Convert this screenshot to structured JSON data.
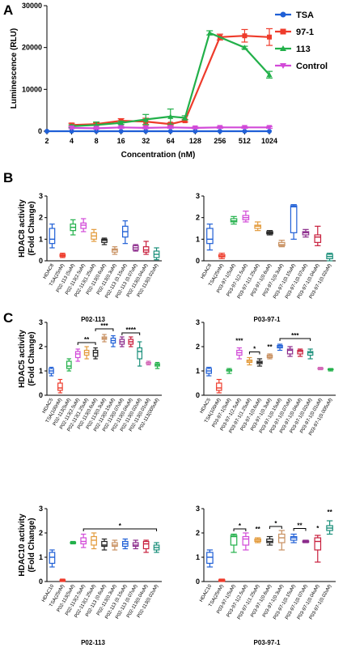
{
  "panels": {
    "a": "A",
    "b": "B",
    "c": "C"
  },
  "captions": {
    "b_left": "P02-113",
    "b_right": "P03-97-1",
    "c_left": "P02-113",
    "c_right": "P03-97-1"
  },
  "chart_data": [
    {
      "id": "A",
      "type": "line",
      "xlabel": "Concentration (nM)",
      "ylabel": "Luminescence (RLU)",
      "xscale": "log2",
      "x": [
        4,
        8,
        16,
        32,
        64,
        128,
        256,
        512,
        1024
      ],
      "xlim": [
        2,
        1024
      ],
      "xticks": [
        2,
        4,
        8,
        16,
        32,
        64,
        128,
        256,
        512,
        1024
      ],
      "ylim": [
        0,
        30000
      ],
      "yticks": [
        0,
        10000,
        20000,
        30000
      ],
      "legend_position": "right",
      "series": [
        {
          "name": "TSA",
          "color": "#1f5fd6",
          "marker": "circle",
          "x": [
            2,
            4,
            8,
            16,
            32,
            64,
            128,
            256,
            512,
            1024
          ],
          "values": [
            0,
            0,
            0,
            0,
            0,
            0,
            0,
            0,
            0,
            0
          ],
          "err": [
            0,
            0,
            0,
            0,
            0,
            0,
            0,
            0,
            0,
            0
          ]
        },
        {
          "name": "97-1",
          "color": "#ee3b2b",
          "marker": "square",
          "x": [
            4,
            8,
            16,
            32,
            64,
            96,
            256,
            512,
            1024
          ],
          "values": [
            1500,
            1700,
            2500,
            2300,
            1700,
            2500,
            22500,
            22800,
            22500
          ],
          "err": [
            400,
            300,
            500,
            800,
            300,
            300,
            700,
            1500,
            2000
          ]
        },
        {
          "name": "113",
          "color": "#22b04a",
          "marker": "triangle",
          "x": [
            4,
            8,
            16,
            32,
            64,
            96,
            192,
            512,
            1024
          ],
          "values": [
            1200,
            1500,
            2000,
            2800,
            3500,
            3200,
            23500,
            20000,
            13500
          ],
          "err": [
            300,
            700,
            400,
            1200,
            1800,
            500,
            500,
            300,
            800
          ]
        },
        {
          "name": "Control",
          "color": "#d24ad8",
          "marker": "triangle-down",
          "x": [
            4,
            8,
            16,
            32,
            64,
            128,
            256,
            512,
            1024
          ],
          "values": [
            800,
            700,
            900,
            800,
            900,
            800,
            900,
            900,
            900
          ],
          "err": [
            200,
            200,
            200,
            200,
            200,
            200,
            200,
            200,
            200
          ]
        }
      ]
    },
    {
      "id": "B-left",
      "type": "box",
      "ylabel": "HDAC8 activity\n(Fold Change)",
      "ylim": [
        0,
        3
      ],
      "yticks": [
        0,
        1,
        2,
        3
      ],
      "categories": [
        "HDAC8",
        "TSA(25nM)",
        "P02-113 (5uM)",
        "P02-113(2.5uM)",
        "P02-113(1.25uM)",
        "P02-113(0.6uM)",
        "P02-113(0.3uM)",
        "P02-113 (0.15uM)",
        "P02-113 (0.07uM)",
        "P02-113(0.04uM)",
        "P02-113(0.02uM)"
      ],
      "colors": [
        "#1f5fd6",
        "#ee3b2b",
        "#22b04a",
        "#d24ad8",
        "#e39b3c",
        "#222222",
        "#c89060",
        "#1f5fd6",
        "#8b2a8b",
        "#c81e3c",
        "#1a8f7a"
      ],
      "low": [
        0.6,
        0.15,
        1.2,
        1.35,
        0.9,
        0.75,
        0.3,
        0.8,
        0.45,
        0.3,
        0.05
      ],
      "q1": [
        0.8,
        0.2,
        1.4,
        1.5,
        1.0,
        0.85,
        0.4,
        1.1,
        0.5,
        0.4,
        0.15
      ],
      "median": [
        1.0,
        0.25,
        1.55,
        1.65,
        1.15,
        0.95,
        0.5,
        1.35,
        0.6,
        0.5,
        0.3
      ],
      "q3": [
        1.5,
        0.3,
        1.7,
        1.75,
        1.3,
        1.0,
        0.55,
        1.6,
        0.7,
        0.65,
        0.45
      ],
      "high": [
        1.7,
        0.35,
        1.9,
        1.95,
        1.45,
        1.05,
        0.65,
        1.85,
        0.75,
        0.9,
        0.6
      ]
    },
    {
      "id": "B-right",
      "type": "box",
      "ylim": [
        0,
        3
      ],
      "yticks": [
        0,
        1,
        2,
        3
      ],
      "categories": [
        "HDAC8",
        "TSA(25nM)",
        "P03-97-1(5uM)",
        "P03-97-1(2.5uM)",
        "P03-97-1(1.25uM)",
        "P03-97-1(0.6uM)",
        "P03-97-1(0.3uM)",
        "P03-97-1(0.15uM)",
        "P03-97-1(0.07uM)",
        "P03-97-1(0.04uM)",
        "P03-97-1(0.02uM)"
      ],
      "colors": [
        "#1f5fd6",
        "#ee3b2b",
        "#22b04a",
        "#d24ad8",
        "#e39b3c",
        "#222222",
        "#c89060",
        "#1f5fd6",
        "#8b2a8b",
        "#c81e3c",
        "#1a8f7a"
      ],
      "low": [
        0.5,
        0.1,
        1.7,
        1.8,
        1.4,
        1.2,
        0.65,
        1.0,
        1.1,
        0.7,
        0.0
      ],
      "q1": [
        0.8,
        0.18,
        1.8,
        1.9,
        1.5,
        1.25,
        0.7,
        1.3,
        1.2,
        0.85,
        0.1
      ],
      "median": [
        1.0,
        0.22,
        1.85,
        2.0,
        1.6,
        1.3,
        0.75,
        2.5,
        1.3,
        1.1,
        0.2
      ],
      "q3": [
        1.5,
        0.28,
        1.95,
        2.1,
        1.65,
        1.35,
        0.85,
        2.55,
        1.35,
        1.2,
        0.3
      ],
      "high": [
        1.7,
        0.35,
        2.05,
        2.3,
        1.8,
        1.4,
        0.95,
        2.6,
        1.45,
        1.6,
        0.35
      ]
    },
    {
      "id": "C-top-left",
      "type": "box",
      "ylabel": "HDAC5 activity\n(Fold Change)",
      "ylim": [
        0,
        3
      ],
      "yticks": [
        0,
        1,
        2,
        3
      ],
      "categories": [
        "HDAC5",
        "TSA(100nM)",
        "P02-113(5uM)",
        "P02-113(2.5uM)",
        "P02-113(1.25uM)",
        "P02-113(0.6uM)",
        "P02-113(0.3uM)",
        "P02-113(0.15uM)",
        "P02-113(0.07uM)",
        "P02-113(0.04uM)",
        "P02-113(0.02uM)",
        "P02-113(0.01uM)",
        "P02-113(005uM)"
      ],
      "colors": [
        "#1f5fd6",
        "#ee3b2b",
        "#22b04a",
        "#d24ad8",
        "#e39b3c",
        "#222222",
        "#c89060",
        "#1f5fd6",
        "#8b2a8b",
        "#c81e3c",
        "#1a8f7a",
        "#d46ab8",
        "#22b04a"
      ],
      "low": [
        0.8,
        0.1,
        1.0,
        1.4,
        1.5,
        1.5,
        2.2,
        2.0,
        2.0,
        2.0,
        1.2,
        1.25,
        1.1
      ],
      "q1": [
        0.9,
        0.2,
        1.1,
        1.55,
        1.65,
        1.6,
        2.3,
        2.15,
        2.1,
        2.1,
        1.5,
        1.3,
        1.2
      ],
      "median": [
        1.0,
        0.3,
        1.2,
        1.7,
        1.75,
        1.75,
        2.35,
        2.25,
        2.2,
        2.2,
        1.8,
        1.3,
        1.25
      ],
      "q3": [
        1.1,
        0.5,
        1.4,
        1.8,
        1.85,
        1.85,
        2.4,
        2.35,
        2.3,
        2.3,
        1.95,
        1.35,
        1.3
      ],
      "high": [
        1.15,
        0.65,
        1.5,
        1.9,
        2.0,
        1.95,
        2.5,
        2.45,
        2.4,
        2.4,
        2.2,
        1.4,
        1.35
      ],
      "annotations": [
        {
          "label": "**",
          "from": 3,
          "to": 5
        },
        {
          "label": "***",
          "from": 5,
          "to": 7
        },
        {
          "label": "****",
          "from": 8,
          "to": 10
        }
      ]
    },
    {
      "id": "C-top-right",
      "type": "box",
      "ylim": [
        0,
        3
      ],
      "yticks": [
        0,
        1,
        2,
        3
      ],
      "categories": [
        "HDAC5",
        "TSA(100nM)",
        "P03-97-1(5uM)",
        "P03-97-1(2.5uM)",
        "P03-97-1(1.25uM)",
        "P03-97-1(0.6uM)",
        "P03-97-1(0.3uM)",
        "P03-97-1(0.15uM)",
        "P03-97-1(0.07uM)",
        "P03-97-1(0.04uM)",
        "P03-97-1(0.02uM)",
        "P03-97-1(0.01uM)",
        "P03-97-1(0.005uM)"
      ],
      "colors": [
        "#1f5fd6",
        "#ee3b2b",
        "#22b04a",
        "#d24ad8",
        "#e39b3c",
        "#222222",
        "#c89060",
        "#1f5fd6",
        "#8b2a8b",
        "#c81e3c",
        "#1a8f7a",
        "#d46ab8",
        "#22b04a"
      ],
      "low": [
        0.8,
        0.1,
        0.9,
        1.5,
        1.25,
        1.2,
        1.5,
        1.85,
        1.6,
        1.6,
        1.5,
        1.05,
        1.0
      ],
      "q1": [
        0.9,
        0.2,
        1.0,
        1.65,
        1.35,
        1.3,
        1.55,
        1.95,
        1.7,
        1.7,
        1.65,
        1.08,
        1.05
      ],
      "median": [
        1.0,
        0.3,
        1.0,
        1.75,
        1.4,
        1.35,
        1.6,
        2.0,
        1.85,
        1.8,
        1.75,
        1.1,
        1.05
      ],
      "q3": [
        1.1,
        0.5,
        1.05,
        1.85,
        1.45,
        1.4,
        1.65,
        2.05,
        1.9,
        1.85,
        1.8,
        1.12,
        1.08
      ],
      "high": [
        1.15,
        0.65,
        1.1,
        1.95,
        1.55,
        1.5,
        1.7,
        2.1,
        2.0,
        1.9,
        1.9,
        1.15,
        1.1
      ],
      "annotations": [
        {
          "label": "***",
          "from": 3,
          "to": 3
        },
        {
          "label": "*",
          "from": 4,
          "to": 5
        },
        {
          "label": "**",
          "from": 6,
          "to": 6
        },
        {
          "label": "***",
          "from": 7,
          "to": 10
        }
      ]
    },
    {
      "id": "C-bottom-left",
      "type": "box",
      "ylabel": "HDAC10 activity\n(Fold Change)",
      "ylim": [
        0,
        3
      ],
      "yticks": [
        0,
        1,
        2,
        3
      ],
      "categories": [
        "HDAC10",
        "TSA(25nM)",
        "P02-113(5uM)",
        "P02-113(2.5uM)",
        "P02-113(1.25uM)",
        "P02-113 (0.6uM)",
        "P02-113(0.3uM)",
        "P02-113 (0.15uM)",
        "P02-113 (0.07uM)",
        "P02-113(0.04uM)",
        "P02-113(0.02uM)"
      ],
      "colors": [
        "#1f5fd6",
        "#ee3b2b",
        "#22b04a",
        "#d24ad8",
        "#e39b3c",
        "#222222",
        "#c89060",
        "#1f5fd6",
        "#8b2a8b",
        "#c81e3c",
        "#1a8f7a"
      ],
      "low": [
        0.6,
        0.0,
        1.55,
        1.4,
        1.35,
        1.3,
        1.3,
        1.35,
        1.35,
        1.2,
        1.2
      ],
      "q1": [
        0.75,
        0.02,
        1.57,
        1.55,
        1.5,
        1.45,
        1.45,
        1.45,
        1.45,
        1.35,
        1.3
      ],
      "median": [
        1.0,
        0.05,
        1.6,
        1.65,
        1.7,
        1.5,
        1.5,
        1.55,
        1.5,
        1.55,
        1.4
      ],
      "q3": [
        1.2,
        0.07,
        1.62,
        1.8,
        1.85,
        1.65,
        1.6,
        1.65,
        1.6,
        1.65,
        1.5
      ],
      "high": [
        1.3,
        0.1,
        1.65,
        1.95,
        2.0,
        1.75,
        1.7,
        1.75,
        1.7,
        1.7,
        1.6
      ],
      "annotations": [
        {
          "label": "*",
          "from": 3,
          "to": 10
        }
      ]
    },
    {
      "id": "C-bottom-right",
      "type": "box",
      "ylim": [
        0,
        3
      ],
      "yticks": [
        0,
        1,
        2,
        3
      ],
      "categories": [
        "HDAC10",
        "TSA(25nM)",
        "P03-97-1(5uM)",
        "P03-97-1(2.5uM)",
        "P03-97-1(1.25uM)",
        "P03-97-1(0.6uM)",
        "P03-97-1(0.3uM)",
        "P03-97-1(0.15uM)",
        "P03-97-1(0.07uM)",
        "P03-97-1(0.04uM)",
        "P03-97-1(0.02uM)"
      ],
      "colors": [
        "#1f5fd6",
        "#ee3b2b",
        "#22b04a",
        "#d24ad8",
        "#e39b3c",
        "#222222",
        "#c89060",
        "#1f5fd6",
        "#8b2a8b",
        "#c81e3c",
        "#1a8f7a"
      ],
      "low": [
        0.6,
        0.0,
        1.2,
        1.3,
        1.6,
        1.5,
        1.3,
        1.6,
        1.6,
        0.8,
        1.95
      ],
      "q1": [
        0.75,
        0.02,
        1.5,
        1.5,
        1.65,
        1.6,
        1.6,
        1.7,
        1.62,
        1.3,
        2.1
      ],
      "median": [
        1.0,
        0.05,
        1.85,
        1.75,
        1.7,
        1.65,
        1.8,
        1.8,
        1.65,
        1.65,
        2.2
      ],
      "q3": [
        1.2,
        0.07,
        1.9,
        1.85,
        1.75,
        1.75,
        1.95,
        1.85,
        1.67,
        1.8,
        2.3
      ],
      "high": [
        1.3,
        0.1,
        1.95,
        2.0,
        1.8,
        1.85,
        2.1,
        1.95,
        1.7,
        1.9,
        2.5
      ],
      "annotations": [
        {
          "label": "*",
          "from": 2,
          "to": 3
        },
        {
          "label": "**",
          "from": 4,
          "to": 4
        },
        {
          "label": "*",
          "from": 5,
          "to": 6
        },
        {
          "label": "**",
          "from": 7,
          "to": 8
        },
        {
          "label": "*",
          "from": 9,
          "to": 9
        },
        {
          "label": "**",
          "from": 10,
          "to": 10
        }
      ]
    }
  ]
}
